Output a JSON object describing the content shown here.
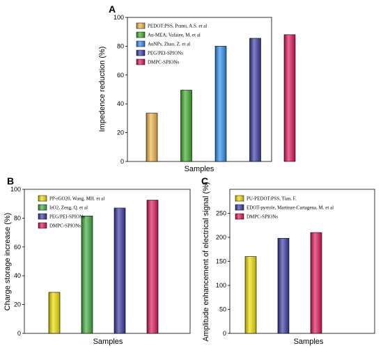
{
  "chart_data": [
    {
      "panel": "A",
      "type": "bar",
      "xlabel": "Samples",
      "ylabel": "Impedence reduction (%)",
      "ylim": [
        0,
        100
      ],
      "yticks": [
        0,
        20,
        40,
        60,
        80,
        100
      ],
      "legend_placement": "top-left",
      "series": [
        {
          "name": "PEDOT:PSS, Pranti, A.S. et al",
          "value": 33.5,
          "color": "#f2b64a"
        },
        {
          "name": "Au-MEA, Vafaiee, M. et al",
          "value": 49.5,
          "color": "#3fae2a"
        },
        {
          "name": "AuNPs, Zhao, Z. et al",
          "value": 80,
          "color": "#2e8ff0"
        },
        {
          "name": "PEG/PEI-SPIONs",
          "value": 85.5,
          "color": "#3a3aa6"
        },
        {
          "name": "DMPC-SPIONs",
          "value": 88,
          "color": "#e0175a"
        }
      ]
    },
    {
      "panel": "B",
      "type": "bar",
      "xlabel": "Samples",
      "ylabel": "Charge storage increase (%)",
      "ylim": [
        0,
        100
      ],
      "yticks": [
        0,
        20,
        40,
        60,
        80,
        100
      ],
      "legend_placement": "top-left",
      "series": [
        {
          "name": "PP-rGO20, Wang, MH. et al",
          "value": 28.5,
          "color": "#f0e000"
        },
        {
          "name": "IrO2, Zeng, Q. et al",
          "value": 81.5,
          "color": "#3fae3f"
        },
        {
          "name": "PEG/PEI-SPIONs",
          "value": 87,
          "color": "#3a3aa6"
        },
        {
          "name": "DMPC-SPIONs",
          "value": 92.5,
          "color": "#e0175a"
        }
      ]
    },
    {
      "panel": "C",
      "type": "bar",
      "xlabel": "Samples",
      "ylabel": "Amplitude enhancement of electrical signal (%)",
      "ylim": [
        0,
        300
      ],
      "yticks": [
        0,
        50,
        100,
        150,
        200,
        250
      ],
      "legend_placement": "top-left",
      "series": [
        {
          "name": "PU-PEDOT:PSS, Tian, F.",
          "value": 160,
          "color": "#f0e000"
        },
        {
          "name": "EDOT-pyrrole, Martinze-Cartagena, M. et al",
          "value": 198,
          "color": "#3a3aa6"
        },
        {
          "name": "DMPC-SPIONs",
          "value": 210,
          "color": "#e0175a"
        }
      ]
    }
  ]
}
